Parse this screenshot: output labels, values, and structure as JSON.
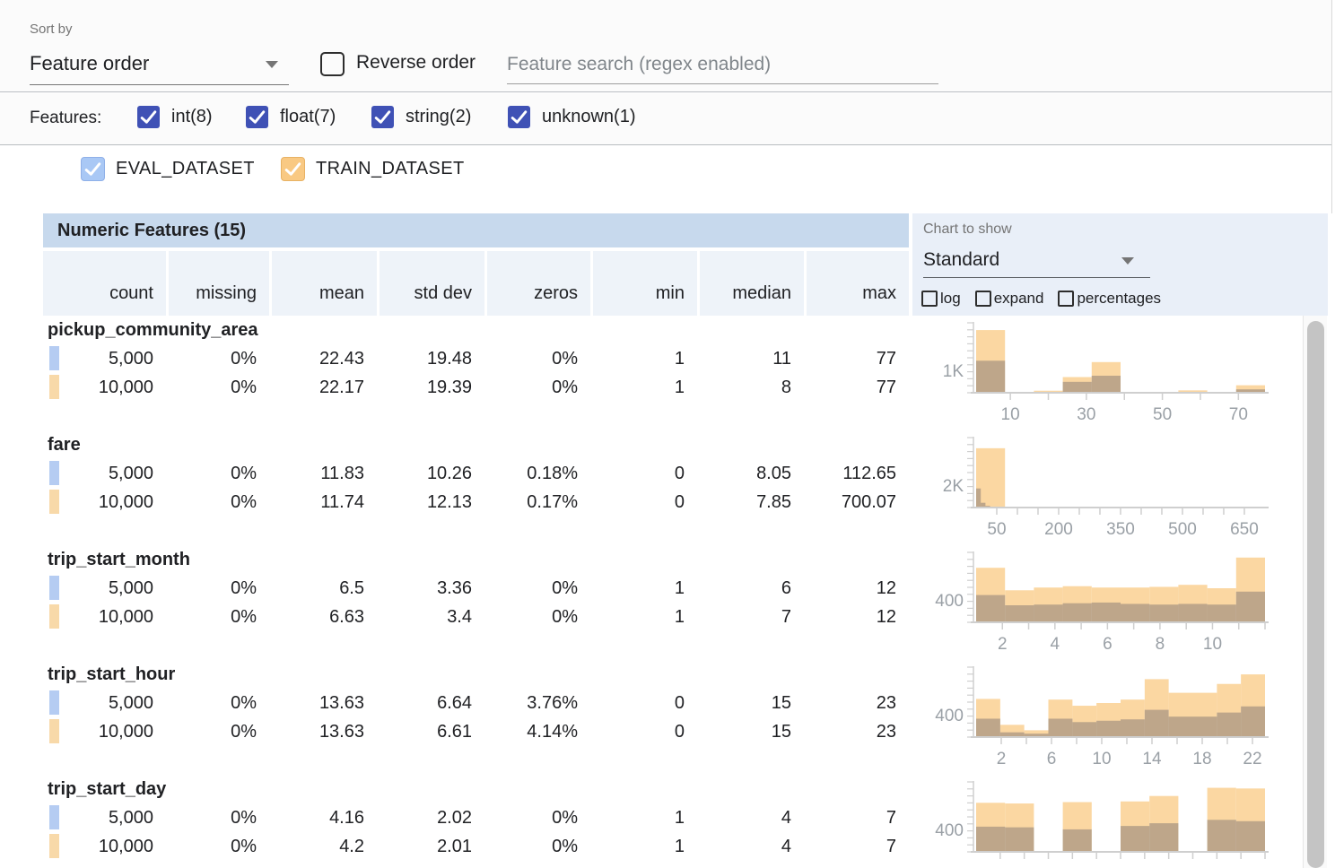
{
  "toolbar": {
    "sort_by_label": "Sort by",
    "sort_value": "Feature order",
    "reverse_order_label": "Reverse order",
    "search_placeholder": "Feature search (regex enabled)"
  },
  "filter_bar": {
    "label": "Features:",
    "items": [
      {
        "label": "int(8)",
        "checked": true
      },
      {
        "label": "float(7)",
        "checked": true
      },
      {
        "label": "string(2)",
        "checked": true
      },
      {
        "label": "unknown(1)",
        "checked": true
      }
    ]
  },
  "dataset_legend": [
    {
      "name": "EVAL_DATASET",
      "checked": true,
      "fill": "#a9c8f5",
      "border": "#8fb0e8",
      "marker": "#b5ccf2"
    },
    {
      "name": "TRAIN_DATASET",
      "checked": true,
      "fill": "#f9c983",
      "border": "#e8b264",
      "marker": "#f8d9a9"
    }
  ],
  "table": {
    "title": "Numeric Features (15)",
    "columns": [
      "count",
      "missing",
      "mean",
      "std dev",
      "zeros",
      "min",
      "median",
      "max"
    ]
  },
  "chart_controls": {
    "label": "Chart to show",
    "selected": "Standard",
    "options": [
      {
        "label": "log",
        "checked": false
      },
      {
        "label": "expand",
        "checked": false
      },
      {
        "label": "percentages",
        "checked": false
      }
    ]
  },
  "features": [
    {
      "name": "pickup_community_area",
      "rows": [
        {
          "dataset": "EVAL_DATASET",
          "values": [
            "5,000",
            "0%",
            "22.43",
            "19.48",
            "0%",
            "1",
            "11",
            "77"
          ]
        },
        {
          "dataset": "TRAIN_DATASET",
          "values": [
            "10,000",
            "0%",
            "22.17",
            "19.39",
            "0%",
            "1",
            "8",
            "77"
          ]
        }
      ]
    },
    {
      "name": "fare",
      "rows": [
        {
          "dataset": "EVAL_DATASET",
          "values": [
            "5,000",
            "0%",
            "11.83",
            "10.26",
            "0.18%",
            "0",
            "8.05",
            "112.65"
          ]
        },
        {
          "dataset": "TRAIN_DATASET",
          "values": [
            "10,000",
            "0%",
            "11.74",
            "12.13",
            "0.17%",
            "0",
            "7.85",
            "700.07"
          ]
        }
      ]
    },
    {
      "name": "trip_start_month",
      "rows": [
        {
          "dataset": "EVAL_DATASET",
          "values": [
            "5,000",
            "0%",
            "6.5",
            "3.36",
            "0%",
            "1",
            "6",
            "12"
          ]
        },
        {
          "dataset": "TRAIN_DATASET",
          "values": [
            "10,000",
            "0%",
            "6.63",
            "3.4",
            "0%",
            "1",
            "7",
            "12"
          ]
        }
      ]
    },
    {
      "name": "trip_start_hour",
      "rows": [
        {
          "dataset": "EVAL_DATASET",
          "values": [
            "5,000",
            "0%",
            "13.63",
            "6.64",
            "3.76%",
            "0",
            "15",
            "23"
          ]
        },
        {
          "dataset": "TRAIN_DATASET",
          "values": [
            "10,000",
            "0%",
            "13.63",
            "6.61",
            "4.14%",
            "0",
            "15",
            "23"
          ]
        }
      ]
    },
    {
      "name": "trip_start_day",
      "rows": [
        {
          "dataset": "EVAL_DATASET",
          "values": [
            "5,000",
            "0%",
            "4.16",
            "2.02",
            "0%",
            "1",
            "4",
            "7"
          ]
        },
        {
          "dataset": "TRAIN_DATASET",
          "values": [
            "10,000",
            "0%",
            "4.2",
            "2.01",
            "0%",
            "1",
            "4",
            "7"
          ]
        }
      ]
    }
  ],
  "chart_data": [
    {
      "feature": "pickup_community_area",
      "type": "histogram",
      "ylabel": "1K",
      "x_range": [
        1,
        77
      ],
      "axis_ticks": [
        10,
        20,
        30,
        40,
        50,
        60,
        70
      ],
      "xtick_labels": [
        {
          "v": 10,
          "label": "10"
        },
        {
          "v": 30,
          "label": "30"
        },
        {
          "v": 50,
          "label": "50"
        },
        {
          "v": 70,
          "label": "70"
        }
      ],
      "series": [
        {
          "name": "TRAIN_DATASET",
          "bins": [
            [
              1,
              8.6,
              0.92
            ],
            [
              8.6,
              16.2,
              0.01
            ],
            [
              16.2,
              23.8,
              0.03
            ],
            [
              23.8,
              31.4,
              0.23
            ],
            [
              31.4,
              39,
              0.45
            ],
            [
              39,
              46.6,
              0.01
            ],
            [
              46.6,
              54.2,
              0.005
            ],
            [
              54.2,
              61.8,
              0.035
            ],
            [
              61.8,
              69.4,
              0.005
            ],
            [
              69.4,
              77,
              0.11
            ]
          ]
        },
        {
          "name": "EVAL_DATASET",
          "bins": [
            [
              1,
              8.6,
              0.47
            ],
            [
              8.6,
              16.2,
              0.005
            ],
            [
              16.2,
              23.8,
              0.01
            ],
            [
              23.8,
              31.4,
              0.16
            ],
            [
              31.4,
              39,
              0.25
            ],
            [
              39,
              46.6,
              0.005
            ],
            [
              46.6,
              54.2,
              0
            ],
            [
              54.2,
              61.8,
              0.01
            ],
            [
              61.8,
              69.4,
              0
            ],
            [
              69.4,
              77,
              0.05
            ]
          ]
        }
      ]
    },
    {
      "feature": "fare",
      "type": "histogram",
      "ylabel": "2K",
      "x_range": [
        0,
        700.07
      ],
      "axis_ticks": [
        50,
        100,
        150,
        200,
        250,
        300,
        350,
        400,
        450,
        500,
        550,
        600,
        650
      ],
      "xtick_labels": [
        {
          "v": 50,
          "label": "50"
        },
        {
          "v": 200,
          "label": "200"
        },
        {
          "v": 350,
          "label": "350"
        },
        {
          "v": 500,
          "label": "500"
        },
        {
          "v": 650,
          "label": "650"
        }
      ],
      "series": [
        {
          "name": "TRAIN_DATASET",
          "bins": [
            [
              0,
              70.01,
              0.87
            ],
            [
              70.01,
              140.01,
              0.004
            ],
            [
              140.01,
              210.02,
              0.002
            ],
            [
              210.02,
              280.03,
              0.001
            ],
            [
              280.03,
              350.04,
              0.001
            ],
            [
              350.04,
              420.04,
              0.001
            ],
            [
              420.04,
              490.05,
              0
            ],
            [
              490.05,
              560.06,
              0
            ],
            [
              560.06,
              630.06,
              0
            ],
            [
              630.06,
              700.07,
              0.001
            ]
          ]
        },
        {
          "name": "EVAL_DATASET",
          "bins": [
            [
              0,
              11.27,
              0.28
            ],
            [
              11.27,
              22.53,
              0.07
            ],
            [
              22.53,
              33.8,
              0.025
            ],
            [
              33.8,
              45.06,
              0.012
            ],
            [
              45.06,
              56.33,
              0.006
            ],
            [
              56.33,
              67.59,
              0.004
            ],
            [
              67.59,
              78.86,
              0.003
            ],
            [
              78.86,
              90.12,
              0.002
            ],
            [
              90.12,
              101.39,
              0.001
            ],
            [
              101.39,
              112.65,
              0.001
            ]
          ]
        }
      ]
    },
    {
      "feature": "trip_start_month",
      "type": "histogram",
      "ylabel": "400",
      "x_range": [
        1,
        12
      ],
      "axis_ticks": [
        2,
        3,
        4,
        5,
        6,
        7,
        8,
        9,
        10,
        11,
        12
      ],
      "xtick_labels": [
        {
          "v": 2,
          "label": "2"
        },
        {
          "v": 4,
          "label": "4"
        },
        {
          "v": 6,
          "label": "6"
        },
        {
          "v": 8,
          "label": "8"
        },
        {
          "v": 10,
          "label": "10"
        }
      ],
      "series": [
        {
          "name": "TRAIN_DATASET",
          "bins": [
            [
              1,
              2.1,
              0.8
            ],
            [
              2.1,
              3.2,
              0.47
            ],
            [
              3.2,
              4.3,
              0.51
            ],
            [
              4.3,
              5.4,
              0.53
            ],
            [
              5.4,
              6.5,
              0.51
            ],
            [
              6.5,
              7.6,
              0.51
            ],
            [
              7.6,
              8.7,
              0.52
            ],
            [
              8.7,
              9.8,
              0.55
            ],
            [
              9.8,
              10.9,
              0.5
            ],
            [
              10.9,
              12,
              0.95
            ]
          ]
        },
        {
          "name": "EVAL_DATASET",
          "bins": [
            [
              1,
              2.1,
              0.4
            ],
            [
              2.1,
              3.2,
              0.25
            ],
            [
              3.2,
              4.3,
              0.26
            ],
            [
              4.3,
              5.4,
              0.28
            ],
            [
              5.4,
              6.5,
              0.29
            ],
            [
              6.5,
              7.6,
              0.27
            ],
            [
              7.6,
              8.7,
              0.26
            ],
            [
              8.7,
              9.8,
              0.27
            ],
            [
              9.8,
              10.9,
              0.26
            ],
            [
              10.9,
              12,
              0.45
            ]
          ]
        }
      ]
    },
    {
      "feature": "trip_start_hour",
      "type": "histogram",
      "ylabel": "400",
      "x_range": [
        0,
        23
      ],
      "axis_ticks": [
        2,
        4,
        6,
        8,
        10,
        12,
        14,
        16,
        18,
        20,
        22
      ],
      "xtick_labels": [
        {
          "v": 2,
          "label": "2"
        },
        {
          "v": 6,
          "label": "6"
        },
        {
          "v": 10,
          "label": "10"
        },
        {
          "v": 14,
          "label": "14"
        },
        {
          "v": 18,
          "label": "18"
        },
        {
          "v": 22,
          "label": "22"
        }
      ],
      "series": [
        {
          "name": "TRAIN_DATASET",
          "bins": [
            [
              0,
              1.92,
              0.56
            ],
            [
              1.92,
              3.83,
              0.18
            ],
            [
              3.83,
              5.75,
              0.1
            ],
            [
              5.75,
              7.67,
              0.55
            ],
            [
              7.67,
              9.58,
              0.46
            ],
            [
              9.58,
              11.5,
              0.5
            ],
            [
              11.5,
              13.42,
              0.55
            ],
            [
              13.42,
              15.33,
              0.85
            ],
            [
              15.33,
              17.25,
              0.65
            ],
            [
              17.25,
              19.17,
              0.65
            ],
            [
              19.17,
              21.08,
              0.78
            ],
            [
              21.08,
              23,
              0.92
            ]
          ]
        },
        {
          "name": "EVAL_DATASET",
          "bins": [
            [
              0,
              1.92,
              0.27
            ],
            [
              1.92,
              3.83,
              0.07
            ],
            [
              3.83,
              5.75,
              0.05
            ],
            [
              5.75,
              7.67,
              0.27
            ],
            [
              7.67,
              9.58,
              0.22
            ],
            [
              9.58,
              11.5,
              0.24
            ],
            [
              11.5,
              13.42,
              0.26
            ],
            [
              13.42,
              15.33,
              0.4
            ],
            [
              15.33,
              17.25,
              0.3
            ],
            [
              17.25,
              19.17,
              0.3
            ],
            [
              19.17,
              21.08,
              0.36
            ],
            [
              21.08,
              23,
              0.45
            ]
          ]
        }
      ]
    },
    {
      "feature": "trip_start_day",
      "type": "histogram",
      "ylabel": "400",
      "x_range": [
        1,
        7
      ],
      "axis_ticks": [
        1.5,
        2,
        2.5,
        3,
        3.5,
        4,
        4.5,
        5,
        5.5,
        6,
        6.5,
        7
      ],
      "xtick_labels": [],
      "series": [
        {
          "name": "TRAIN_DATASET",
          "bins": [
            [
              1,
              1.6,
              0.72
            ],
            [
              1.6,
              2.2,
              0.71
            ],
            [
              2.2,
              2.8,
              0
            ],
            [
              2.8,
              3.4,
              0.73
            ],
            [
              3.4,
              4,
              0
            ],
            [
              4,
              4.6,
              0.74
            ],
            [
              4.6,
              5.2,
              0.82
            ],
            [
              5.2,
              5.8,
              0
            ],
            [
              5.8,
              6.4,
              0.94
            ],
            [
              6.4,
              7,
              0.93
            ]
          ]
        },
        {
          "name": "EVAL_DATASET",
          "bins": [
            [
              1,
              1.6,
              0.37
            ],
            [
              1.6,
              2.2,
              0.36
            ],
            [
              2.2,
              2.8,
              0
            ],
            [
              2.8,
              3.4,
              0.33
            ],
            [
              3.4,
              4,
              0
            ],
            [
              4,
              4.6,
              0.38
            ],
            [
              4.6,
              5.2,
              0.42
            ],
            [
              5.2,
              5.8,
              0
            ],
            [
              5.8,
              6.4,
              0.47
            ],
            [
              6.4,
              7,
              0.45
            ]
          ]
        }
      ]
    }
  ],
  "colors": {
    "accent": "#3f51b5",
    "hist_train": "#fbd7a2",
    "hist_eval_overlay": "rgba(106,98,104,0.42)",
    "band_bg": "#c7d9ed",
    "header_row_bg": "#eef3f9",
    "panel_bg": "#e9eff8",
    "axis": "#cfcfcf",
    "axis_text": "#9aa0a6"
  }
}
